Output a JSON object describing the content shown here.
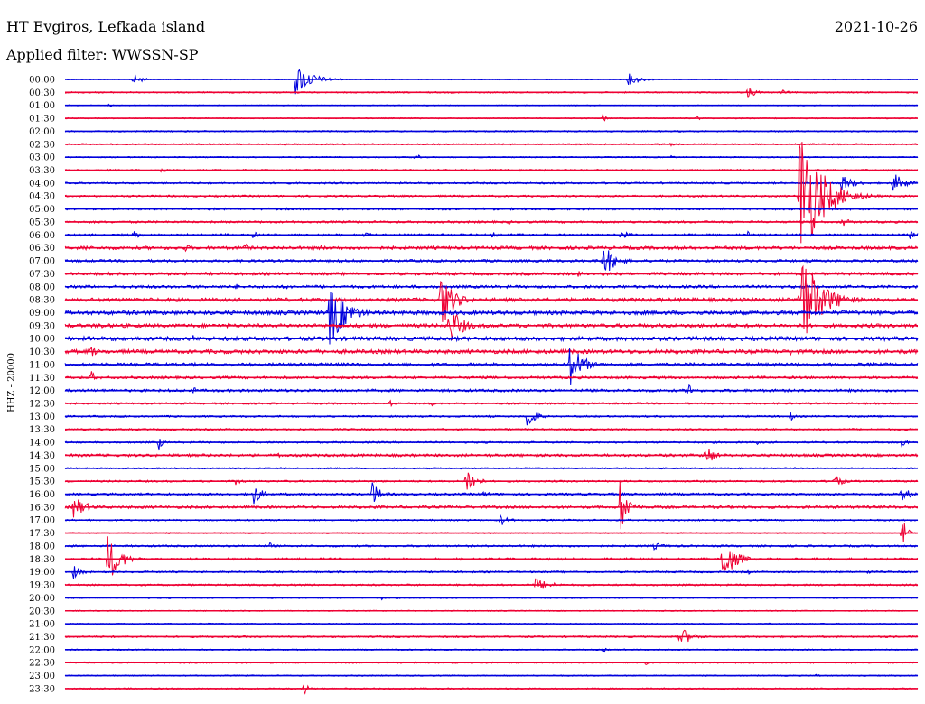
{
  "header": {
    "title": "HT Evgiros, Lefkada island",
    "date": "2021-10-26",
    "filter": "Applied filter: WWSSN-SP",
    "channel": "HHZ - 20000"
  },
  "chart_data": {
    "type": "line",
    "description_kind": "helicorder",
    "trace_colors": [
      "#0000dd",
      "#ee0033"
    ],
    "y_labels": [
      "00:00",
      "00:30",
      "01:00",
      "01:30",
      "02:00",
      "02:30",
      "03:00",
      "03:30",
      "04:00",
      "04:30",
      "05:00",
      "05:30",
      "06:00",
      "06:30",
      "07:00",
      "07:30",
      "08:00",
      "08:30",
      "09:00",
      "09:30",
      "10:00",
      "10:30",
      "11:00",
      "11:30",
      "12:00",
      "12:30",
      "13:00",
      "13:30",
      "14:00",
      "14:30",
      "15:00",
      "15:30",
      "16:00",
      "16:30",
      "17:00",
      "17:30",
      "18:00",
      "18:30",
      "19:00",
      "19:30",
      "20:00",
      "20:30",
      "21:00",
      "21:30",
      "22:00",
      "22:30",
      "23:00",
      "23:30"
    ],
    "x_range_minutes": [
      0,
      30
    ],
    "rows": [
      {
        "noise": 0.5,
        "events": [
          [
            8,
            2,
            7
          ],
          [
            27,
            4,
            18
          ],
          [
            66,
            3,
            7
          ]
        ]
      },
      {
        "noise": 0.8,
        "events": [
          [
            84,
            2,
            3
          ],
          [
            80,
            2,
            7
          ]
        ]
      },
      {
        "noise": 0.5,
        "events": [
          [
            5,
            1,
            3
          ]
        ]
      },
      {
        "noise": 0.6,
        "events": [
          [
            63,
            1,
            5
          ],
          [
            74,
            1,
            3
          ]
        ]
      },
      {
        "noise": 0.8,
        "events": [
          [
            30,
            1,
            2
          ]
        ]
      },
      {
        "noise": 0.8,
        "events": [
          [
            71,
            1,
            3
          ]
        ]
      },
      {
        "noise": 0.7,
        "events": [
          [
            41,
            2,
            4
          ],
          [
            71,
            1,
            3
          ]
        ]
      },
      {
        "noise": 1.0,
        "events": [
          [
            11,
            2,
            4
          ]
        ]
      },
      {
        "noise": 1.0,
        "events": [
          [
            91,
            3,
            10
          ],
          [
            97,
            3,
            12
          ]
        ]
      },
      {
        "noise": 1.0,
        "events": [
          [
            86,
            5,
            90
          ]
        ]
      },
      {
        "noise": 1.2,
        "events": [
          [
            88,
            2,
            3
          ]
        ]
      },
      {
        "noise": 1.2,
        "events": [
          [
            52,
            1,
            3
          ],
          [
            91,
            2,
            6
          ]
        ]
      },
      {
        "noise": 1.3,
        "events": [
          [
            8,
            2,
            5
          ],
          [
            22,
            2,
            4
          ],
          [
            35,
            2,
            4
          ],
          [
            50,
            2,
            4
          ],
          [
            65,
            3,
            5
          ],
          [
            80,
            2,
            4
          ],
          [
            99,
            2,
            5
          ]
        ]
      },
      {
        "noise": 1.8,
        "events": [
          [
            2,
            2,
            5
          ],
          [
            14,
            2,
            5
          ],
          [
            21,
            1,
            7
          ],
          [
            30,
            2,
            3
          ]
        ]
      },
      {
        "noise": 1.4,
        "events": [
          [
            63,
            3,
            20
          ]
        ]
      },
      {
        "noise": 1.6,
        "events": [
          [
            60,
            2,
            4
          ]
        ]
      },
      {
        "noise": 1.6,
        "events": [
          [
            20,
            1,
            4
          ],
          [
            26,
            1,
            3
          ]
        ]
      },
      {
        "noise": 2.0,
        "events": [
          [
            44,
            3,
            35
          ],
          [
            86,
            5,
            60
          ]
        ]
      },
      {
        "noise": 2.2,
        "events": [
          [
            31,
            4,
            40
          ]
        ]
      },
      {
        "noise": 2.0,
        "events": [
          [
            4,
            2,
            4
          ],
          [
            45,
            3,
            25
          ]
        ]
      },
      {
        "noise": 2.2,
        "events": [
          [
            15,
            2,
            4
          ]
        ]
      },
      {
        "noise": 2.2,
        "events": [
          [
            3,
            2,
            7
          ],
          [
            85,
            2,
            4
          ]
        ]
      },
      {
        "noise": 1.8,
        "events": [
          [
            59,
            3,
            30
          ]
        ]
      },
      {
        "noise": 1.4,
        "events": [
          [
            3,
            1,
            9
          ]
        ]
      },
      {
        "noise": 1.5,
        "events": [
          [
            15,
            2,
            4
          ],
          [
            32,
            2,
            3
          ],
          [
            73,
            1,
            12
          ]
        ]
      },
      {
        "noise": 1.0,
        "events": [
          [
            38,
            1,
            7
          ],
          [
            43,
            1,
            3
          ]
        ]
      },
      {
        "noise": 1.0,
        "events": [
          [
            11,
            1,
            3
          ],
          [
            54,
            2,
            18
          ],
          [
            85,
            1,
            6
          ]
        ]
      },
      {
        "noise": 1.0,
        "events": [
          [
            4,
            1,
            2
          ]
        ]
      },
      {
        "noise": 1.0,
        "events": [
          [
            11,
            1,
            9
          ],
          [
            81,
            1,
            3
          ],
          [
            98,
            2,
            5
          ]
        ]
      },
      {
        "noise": 1.5,
        "events": [
          [
            25,
            2,
            4
          ],
          [
            75,
            2,
            15
          ]
        ]
      },
      {
        "noise": 0.8,
        "events": []
      },
      {
        "noise": 1.0,
        "events": [
          [
            20,
            2,
            4
          ],
          [
            47,
            2,
            20
          ],
          [
            90,
            2,
            10
          ]
        ]
      },
      {
        "noise": 1.3,
        "events": [
          [
            22,
            2,
            14
          ],
          [
            36,
            2,
            14
          ],
          [
            49,
            2,
            4
          ],
          [
            98,
            2,
            10
          ]
        ]
      },
      {
        "noise": 1.5,
        "events": [
          [
            1,
            3,
            14
          ],
          [
            65,
            2,
            33
          ]
        ]
      },
      {
        "noise": 0.9,
        "events": [
          [
            51,
            2,
            7
          ]
        ]
      },
      {
        "noise": 0.7,
        "events": [
          [
            98,
            1,
            24
          ]
        ]
      },
      {
        "noise": 1.1,
        "events": [
          [
            24,
            1,
            4
          ],
          [
            69,
            3,
            4
          ]
        ]
      },
      {
        "noise": 1.2,
        "events": [
          [
            5,
            3,
            28
          ],
          [
            77,
            3,
            26
          ]
        ]
      },
      {
        "noise": 1.0,
        "events": [
          [
            1,
            2,
            8
          ],
          [
            80,
            1,
            3
          ],
          [
            94,
            1,
            3
          ]
        ]
      },
      {
        "noise": 1.0,
        "events": [
          [
            55,
            4,
            8
          ]
        ]
      },
      {
        "noise": 0.8,
        "events": [
          [
            37,
            1,
            3
          ]
        ]
      },
      {
        "noise": 0.6,
        "events": []
      },
      {
        "noise": 0.7,
        "events": []
      },
      {
        "noise": 1.0,
        "events": [
          [
            72,
            3,
            12
          ]
        ]
      },
      {
        "noise": 0.7,
        "events": [
          [
            63,
            1,
            3
          ]
        ]
      },
      {
        "noise": 0.8,
        "events": [
          [
            68,
            1,
            4
          ]
        ]
      },
      {
        "noise": 0.7,
        "events": [
          [
            88,
            1,
            3
          ]
        ]
      },
      {
        "noise": 0.8,
        "events": [
          [
            28,
            1,
            8
          ],
          [
            77,
            1,
            3
          ]
        ]
      }
    ]
  }
}
